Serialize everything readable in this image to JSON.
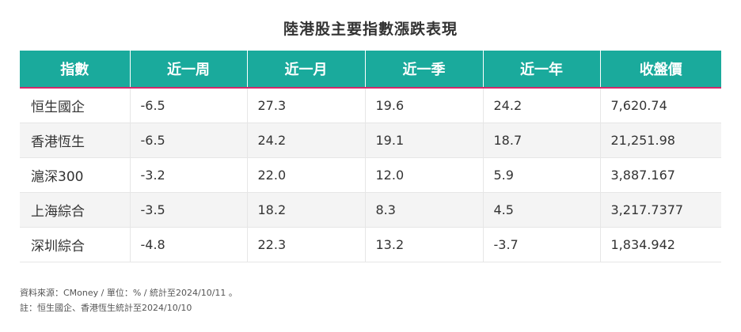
{
  "title": "陸港股主要指數漲跌表現",
  "table": {
    "headers": [
      "指數",
      "近一周",
      "近一月",
      "近一季",
      "近一年",
      "收盤價"
    ],
    "rows": [
      [
        "恒生國企",
        "-6.5",
        "27.3",
        "19.6",
        "24.2",
        "7,620.74"
      ],
      [
        "香港恆生",
        "-6.5",
        "24.2",
        "19.1",
        "18.7",
        "21,251.98"
      ],
      [
        "滬深300",
        "-3.2",
        "22.0",
        "12.0",
        "5.9",
        "3,887.167"
      ],
      [
        "上海綜合",
        "-3.5",
        "18.2",
        "8.3",
        "4.5",
        "3,217.7377"
      ],
      [
        "深圳綜合",
        "-4.8",
        "22.3",
        "13.2",
        "-3.7",
        "1,834.942"
      ]
    ]
  },
  "notes": {
    "source": "資料來源：CMoney / 單位：% / 統計至2024/10/11 。",
    "remark": "註：恒生國企、香港恆生統計至2024/10/10"
  },
  "colors": {
    "header_bg": "#1aaa9c",
    "header_border": "#d4286a",
    "row_alt": "#f4f4f4"
  }
}
